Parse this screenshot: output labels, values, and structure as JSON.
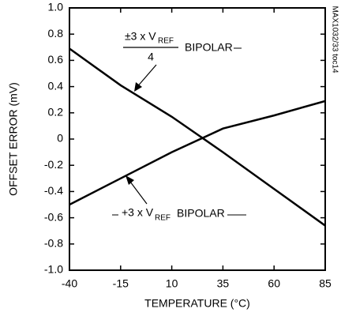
{
  "chart_data": {
    "type": "line",
    "x_label": "TEMPERATURE (°C)",
    "y_label": "OFFSET ERROR (mV)",
    "x": [
      -40,
      -15,
      10,
      35,
      60,
      85
    ],
    "series": [
      {
        "color": "#000000",
        "values": [
          0.69,
          0.41,
          0.17,
          -0.1,
          -0.38,
          -0.66
        ]
      },
      {
        "color": "#000000",
        "values": [
          -0.5,
          -0.3,
          -0.1,
          0.08,
          0.18,
          0.29
        ]
      }
    ],
    "xlim": [
      -40,
      85
    ],
    "xticks": [
      -40,
      -15,
      10,
      35,
      60,
      85
    ],
    "ylim": [
      -1,
      1
    ],
    "yticks": [
      {
        "value": -1,
        "label": "-1.0"
      },
      -0.8,
      -0.6,
      -0.4,
      -0.2,
      0,
      0.2,
      0.4,
      0.6,
      0.8,
      {
        "value": 1,
        "label": "1.0"
      }
    ],
    "annotations": [
      {
        "text": "±3 x V",
        "sub": "REF",
        "denominator": "4",
        "suffix": "BIPOLAR"
      },
      {
        "text": "+3 x V",
        "sub": "REF",
        "suffix": "BIPOLAR"
      }
    ],
    "figure_id": "MAX1032/33 toc14"
  }
}
